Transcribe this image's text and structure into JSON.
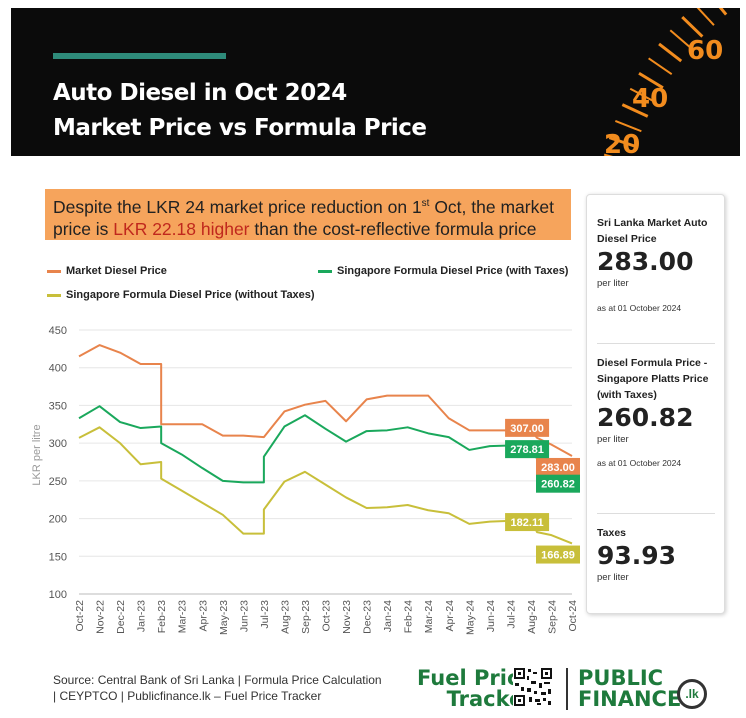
{
  "header": {
    "title_line1": "Auto Diesel in Oct 2024",
    "title_line2": "Market Price vs Formula Price",
    "gauge_labels": [
      "60",
      "40",
      "20"
    ]
  },
  "callout": {
    "part1": "Despite the LKR 24 market price reduction on 1",
    "sup": "st",
    "part2": " Oct, the market price is ",
    "highlight": "LKR 22.18 higher",
    "part3": " than the cost-reflective formula price"
  },
  "legend": {
    "market": "Market Diesel Price",
    "sg_with_tax": "Singapore Formula Diesel Price (with Taxes)",
    "sg_without_tax": "Singapore Formula Diesel Price (without Taxes)"
  },
  "side_card": {
    "market_label": "Sri Lanka Market Auto Diesel Price",
    "market_value": "283.00",
    "market_unit": "per liter",
    "market_date": "as at 01 October 2024",
    "formula_label": "Diesel Formula Price - Singapore Platts Price (with Taxes)",
    "formula_value": "260.82",
    "formula_unit": "per liter",
    "formula_date": "as at 01 October 2024",
    "taxes_label": "Taxes",
    "taxes_value": "93.93",
    "taxes_unit": "per liter"
  },
  "footer": {
    "source_line1": "Source: Central Bank of Sri Lanka | Formula Price Calculation",
    "source_line2": "| CEYPTCO | Publicfinance.lk – Fuel Price Tracker",
    "brand1_line1": "Fuel Price",
    "brand1_line2": "Tracker",
    "brand2_line1": "PUBLIC",
    "brand2_line2": "FINANCE",
    "brand2_badge": ".lk"
  },
  "colors": {
    "market": "#e8844c",
    "with_tax": "#1aa85c",
    "without_tax": "#c8bf3a",
    "callout_bg": "#f6a45c",
    "highlight": "#c0281d",
    "brand_green": "#1e7a3c",
    "header_bg": "#0b0b0b",
    "gauge_orange": "#f28c1e"
  },
  "chart_data": {
    "type": "line",
    "ylabel": "LKR per litre",
    "ylim": [
      100,
      450
    ],
    "yticks": [
      100,
      150,
      200,
      250,
      300,
      350,
      400,
      450
    ],
    "grid": true,
    "categories": [
      "Oct-22",
      "Nov-22",
      "Dec-22",
      "Jan-23",
      "Feb-23",
      "Mar-23",
      "Apr-23",
      "May-23",
      "Jun-23",
      "Jul-23",
      "Aug-23",
      "Sep-23",
      "Oct-23",
      "Nov-23",
      "Dec-23",
      "Jan-24",
      "Feb-24",
      "Mar-24",
      "Apr-24",
      "May-24",
      "Jun-24",
      "Jul-24",
      "Aug-24",
      "Sep-24",
      "Oct-24"
    ],
    "series": [
      {
        "name": "Market Diesel Price",
        "color": "#e8844c",
        "points": [
          [
            0,
            415
          ],
          [
            1,
            430
          ],
          [
            2,
            420
          ],
          [
            3,
            405
          ],
          [
            4,
            405
          ],
          [
            4,
            325
          ],
          [
            5,
            325
          ],
          [
            6,
            325
          ],
          [
            7,
            310
          ],
          [
            8,
            310
          ],
          [
            9,
            308
          ],
          [
            9.5,
            325
          ],
          [
            10,
            342
          ],
          [
            11,
            351
          ],
          [
            12,
            356
          ],
          [
            13,
            329
          ],
          [
            14,
            358
          ],
          [
            15,
            363
          ],
          [
            16,
            363
          ],
          [
            17,
            363
          ],
          [
            18,
            333
          ],
          [
            19,
            317
          ],
          [
            20,
            317
          ],
          [
            21,
            317
          ],
          [
            22,
            317
          ],
          [
            22.3,
            307
          ],
          [
            23,
            298
          ],
          [
            24,
            283
          ]
        ]
      },
      {
        "name": "Singapore Formula Diesel Price (with Taxes)",
        "color": "#1aa85c",
        "points": [
          [
            0,
            333
          ],
          [
            1,
            349
          ],
          [
            2,
            328
          ],
          [
            3,
            320
          ],
          [
            4,
            322
          ],
          [
            4,
            300
          ],
          [
            5,
            285
          ],
          [
            6,
            267
          ],
          [
            7,
            250
          ],
          [
            8,
            248
          ],
          [
            9,
            248
          ],
          [
            9,
            282
          ],
          [
            10,
            322
          ],
          [
            11,
            337
          ],
          [
            12,
            319
          ],
          [
            13,
            302
          ],
          [
            14,
            316
          ],
          [
            15,
            317
          ],
          [
            16,
            321
          ],
          [
            17,
            313
          ],
          [
            18,
            308
          ],
          [
            19,
            291
          ],
          [
            20,
            296
          ],
          [
            21,
            297
          ],
          [
            22,
            298
          ],
          [
            22.3,
            279
          ],
          [
            23,
            274
          ],
          [
            24,
            261
          ]
        ]
      },
      {
        "name": "Singapore Formula Diesel Price (without Taxes)",
        "color": "#c8bf3a",
        "points": [
          [
            0,
            307
          ],
          [
            1,
            321
          ],
          [
            2,
            300
          ],
          [
            3,
            272
          ],
          [
            4,
            275
          ],
          [
            4,
            253
          ],
          [
            5,
            237
          ],
          [
            6,
            221
          ],
          [
            7,
            205
          ],
          [
            8,
            180
          ],
          [
            9,
            180
          ],
          [
            9,
            212
          ],
          [
            10,
            249
          ],
          [
            11,
            262
          ],
          [
            12,
            245
          ],
          [
            13,
            228
          ],
          [
            14,
            214
          ],
          [
            15,
            215
          ],
          [
            16,
            218
          ],
          [
            17,
            211
          ],
          [
            18,
            207
          ],
          [
            19,
            193
          ],
          [
            20,
            196
          ],
          [
            21,
            197
          ],
          [
            22,
            199
          ],
          [
            22.3,
            182
          ],
          [
            23,
            178
          ],
          [
            24,
            167
          ]
        ]
      }
    ],
    "data_labels": [
      {
        "text": "307.00",
        "series": 0,
        "x": 22.3,
        "y": 307
      },
      {
        "text": "283.00",
        "series": 0,
        "x": 24,
        "y": 283
      },
      {
        "text": "278.81",
        "series": 1,
        "x": 22.3,
        "y": 278.81
      },
      {
        "text": "260.82",
        "series": 1,
        "x": 24,
        "y": 260.82
      },
      {
        "text": "182.11",
        "series": 2,
        "x": 22.3,
        "y": 182.11
      },
      {
        "text": "166.89",
        "series": 2,
        "x": 24,
        "y": 166.89
      }
    ]
  }
}
